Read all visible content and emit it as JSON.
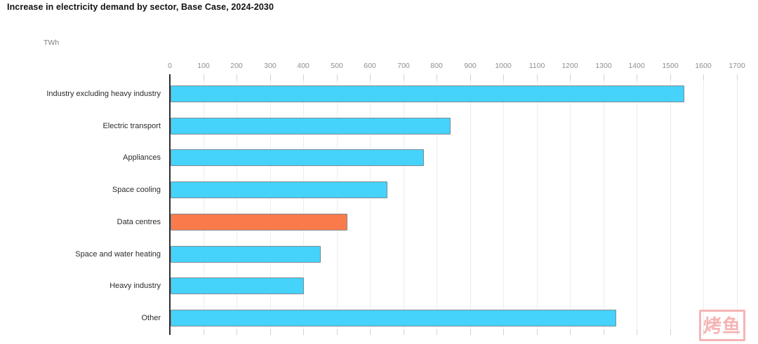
{
  "title": "Increase in electricity demand by sector, Base Case, 2024-2030",
  "unit_label": "TWh",
  "watermark": {
    "text": "烤鱼"
  },
  "colors": {
    "bar_fill": "#45D2FB",
    "highlight_fill": "#FB7A4C",
    "bar_border": "#7F8C92",
    "grid": "#EDEDED",
    "tickmark": "#D2D2D2",
    "axis_line": "#2D2D2D",
    "tick_label": "#8B9094",
    "category_label": "#2B2B2B",
    "watermark_pink": "#F6B4B4"
  },
  "chart_data": {
    "type": "bar",
    "orientation": "horizontal",
    "title": "Increase in electricity demand by sector, Base Case, 2024-2030",
    "xlabel": "TWh",
    "ylabel": "",
    "categories": [
      "Industry excluding heavy industry",
      "Electric transport",
      "Appliances",
      "Space cooling",
      "Data centres",
      "Space and water heating",
      "Heavy industry",
      "Other"
    ],
    "values": [
      1540,
      840,
      760,
      650,
      530,
      450,
      400,
      1335
    ],
    "highlighted_category": "Data centres",
    "highlight_note": "Data centres bar shown in orange; all other bars cyan",
    "xlim": [
      0,
      1700
    ],
    "xticks": [
      0,
      100,
      200,
      300,
      400,
      500,
      600,
      700,
      800,
      900,
      1000,
      1100,
      1200,
      1300,
      1400,
      1500,
      1600,
      1700
    ],
    "grid": true,
    "legend": false,
    "value_labels": false
  }
}
